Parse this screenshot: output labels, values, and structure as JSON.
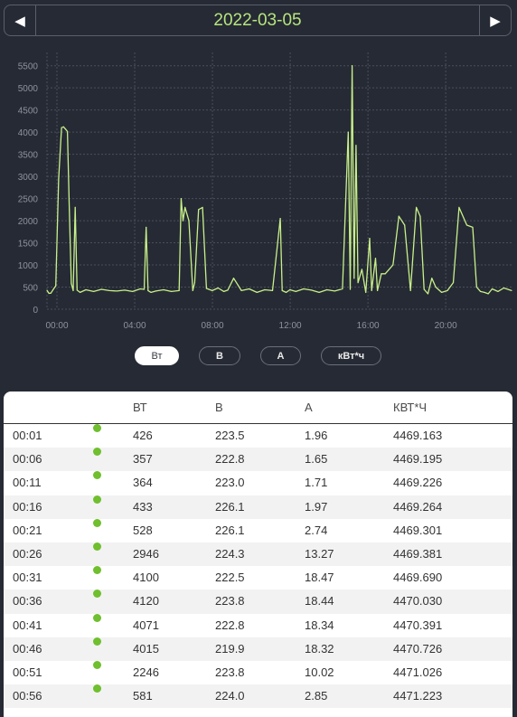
{
  "date_nav": {
    "prev_icon": "◀",
    "date": "2022-03-05",
    "next_icon": "▶"
  },
  "chart_data": {
    "type": "line",
    "y_ticks": [
      "0",
      "500",
      "1000",
      "1500",
      "2000",
      "2500",
      "3000",
      "3500",
      "4000",
      "4500",
      "5000",
      "5500"
    ],
    "x_ticks": [
      "00:00",
      "04:00",
      "08:00",
      "12:00",
      "16:00",
      "20:00"
    ],
    "ylim": [
      0,
      5800
    ],
    "xlim_hours": [
      0,
      23.9
    ],
    "grid": true,
    "line_color": "#c8f08a",
    "x": [
      0,
      0.1,
      0.2,
      0.3,
      0.45,
      0.6,
      0.75,
      0.85,
      0.95,
      1.05,
      1.15,
      1.25,
      1.35,
      1.45,
      1.55,
      1.7,
      2,
      2.4,
      2.8,
      3.2,
      3.6,
      4,
      4.4,
      4.8,
      5.0,
      5.1,
      5.2,
      5.35,
      5.6,
      6,
      6.4,
      6.8,
      6.9,
      7.0,
      7.1,
      7.3,
      7.5,
      7.6,
      7.8,
      8.0,
      8.2,
      8.5,
      8.8,
      9.1,
      9.3,
      9.6,
      10,
      10.4,
      10.8,
      11.2,
      11.6,
      12.0,
      12.1,
      12.3,
      12.5,
      12.8,
      13.2,
      13.6,
      14.0,
      14.4,
      14.8,
      15.2,
      15.5,
      15.6,
      15.7,
      15.8,
      15.9,
      16.0,
      16.2,
      16.4,
      16.6,
      16.7,
      16.9,
      17.0,
      17.2,
      17.4,
      17.6,
      17.8,
      18.1,
      18.4,
      18.7,
      19.0,
      19.2,
      19.4,
      19.6,
      19.8,
      20.0,
      20.3,
      20.6,
      20.9,
      21.2,
      21.6,
      21.9,
      22.1,
      22.3,
      22.5,
      22.7,
      22.9,
      23.2,
      23.5,
      23.9
    ],
    "y": [
      426,
      357,
      364,
      433,
      528,
      2946,
      4100,
      4120,
      4071,
      4015,
      2246,
      581,
      420,
      2300,
      430,
      380,
      440,
      400,
      450,
      420,
      410,
      430,
      400,
      460,
      450,
      1850,
      420,
      380,
      410,
      440,
      400,
      420,
      2500,
      2000,
      2300,
      2000,
      420,
      600,
      2250,
      2300,
      470,
      420,
      480,
      400,
      430,
      700,
      420,
      460,
      380,
      440,
      420,
      2050,
      420,
      380,
      440,
      400,
      460,
      430,
      380,
      440,
      410,
      460,
      4000,
      450,
      5500,
      700,
      3700,
      600,
      900,
      380,
      1600,
      420,
      1150,
      420,
      800,
      800,
      900,
      1000,
      2100,
      1900,
      420,
      2300,
      2100,
      450,
      350,
      700,
      500,
      380,
      420,
      600,
      2300,
      1900,
      1850,
      500,
      400,
      380,
      350,
      460,
      400,
      480,
      420
    ]
  },
  "unit_tabs": [
    {
      "label": "Вт",
      "active": true
    },
    {
      "label": "В",
      "active": false
    },
    {
      "label": "А",
      "active": false
    },
    {
      "label": "кВт*ч",
      "active": false
    }
  ],
  "table": {
    "headers": {
      "w": "ВТ",
      "v": "В",
      "a": "А",
      "kwh": "КВТ*Ч"
    },
    "rows": [
      {
        "time": "00:01",
        "w": "426",
        "v": "223.5",
        "a": "1.96",
        "kwh": "4469.163"
      },
      {
        "time": "00:06",
        "w": "357",
        "v": "222.8",
        "a": "1.65",
        "kwh": "4469.195"
      },
      {
        "time": "00:11",
        "w": "364",
        "v": "223.0",
        "a": "1.71",
        "kwh": "4469.226"
      },
      {
        "time": "00:16",
        "w": "433",
        "v": "226.1",
        "a": "1.97",
        "kwh": "4469.264"
      },
      {
        "time": "00:21",
        "w": "528",
        "v": "226.1",
        "a": "2.74",
        "kwh": "4469.301"
      },
      {
        "time": "00:26",
        "w": "2946",
        "v": "224.3",
        "a": "13.27",
        "kwh": "4469.381"
      },
      {
        "time": "00:31",
        "w": "4100",
        "v": "222.5",
        "a": "18.47",
        "kwh": "4469.690"
      },
      {
        "time": "00:36",
        "w": "4120",
        "v": "223.8",
        "a": "18.44",
        "kwh": "4470.030"
      },
      {
        "time": "00:41",
        "w": "4071",
        "v": "222.8",
        "a": "18.34",
        "kwh": "4470.391"
      },
      {
        "time": "00:46",
        "w": "4015",
        "v": "219.9",
        "a": "18.32",
        "kwh": "4470.726"
      },
      {
        "time": "00:51",
        "w": "2246",
        "v": "223.8",
        "a": "10.02",
        "kwh": "4471.026"
      },
      {
        "time": "00:56",
        "w": "581",
        "v": "224.0",
        "a": "2.85",
        "kwh": "4471.223"
      }
    ]
  },
  "status_color": "#6fbf2e"
}
